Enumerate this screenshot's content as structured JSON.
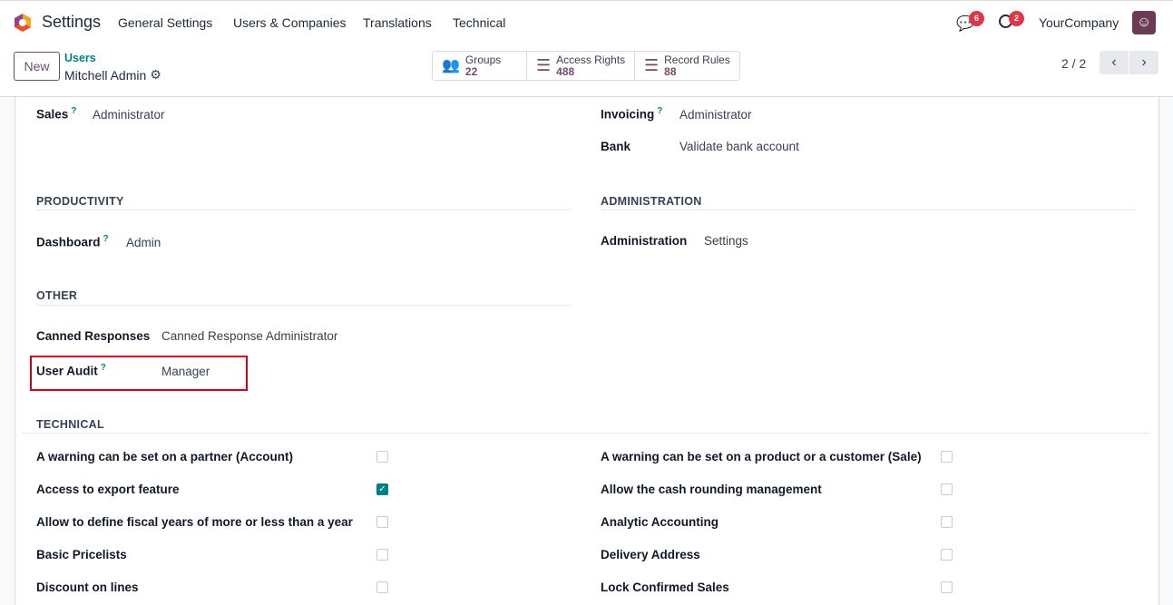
{
  "nav": {
    "app": "Settings",
    "menu": [
      "General Settings",
      "Users & Companies",
      "Translations",
      "Technical"
    ],
    "messages_count": "6",
    "activities_count": "2",
    "company": "YourCompany"
  },
  "control": {
    "new_label": "New",
    "breadcrumb_parent": "Users",
    "record_name": "Mitchell Admin",
    "stats": [
      {
        "label": "Groups",
        "value": "22",
        "icon": "users-icon"
      },
      {
        "label": "Access Rights",
        "value": "488",
        "icon": "list-icon"
      },
      {
        "label": "Record Rules",
        "value": "88",
        "icon": "list-icon"
      }
    ],
    "pager": "2 / 2"
  },
  "fields": {
    "sales": {
      "label": "Sales",
      "value": "Administrator"
    },
    "invoicing": {
      "label": "Invoicing",
      "value": "Administrator"
    },
    "bank": {
      "label": "Bank",
      "value": "Validate bank account"
    },
    "productivity": "PRODUCTIVITY",
    "administration_section": "ADMINISTRATION",
    "dashboard": {
      "label": "Dashboard",
      "value": "Admin"
    },
    "administration": {
      "label": "Administration",
      "value": "Settings"
    },
    "other": "OTHER",
    "canned": {
      "label": "Canned Responses",
      "value": "Canned Response Administrator"
    },
    "audit": {
      "label": "User Audit",
      "value": "Manager"
    },
    "technical": "TECHNICAL"
  },
  "technical_left": [
    {
      "label": "A warning can be set on a partner (Account)",
      "checked": false
    },
    {
      "label": "Access to export feature",
      "checked": true
    },
    {
      "label": "Allow to define fiscal years of more or less than a year",
      "checked": false
    },
    {
      "label": "Basic Pricelists",
      "checked": false
    },
    {
      "label": "Discount on lines",
      "checked": false
    }
  ],
  "technical_right": [
    {
      "label": "A warning can be set on a product or a customer (Sale)",
      "checked": false
    },
    {
      "label": "Allow the cash rounding management",
      "checked": false
    },
    {
      "label": "Analytic Accounting",
      "checked": false
    },
    {
      "label": "Delivery Address",
      "checked": false
    },
    {
      "label": "Lock Confirmed Sales",
      "checked": false
    }
  ],
  "colors": {
    "brand": "#714b67",
    "accent": "#017e84",
    "highlight": "#d0021b"
  }
}
